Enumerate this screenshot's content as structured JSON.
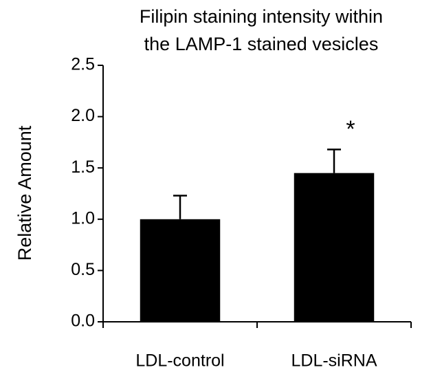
{
  "chart_data": {
    "type": "bar",
    "title": [
      "Filipin staining intensity within",
      "the LAMP-1 stained vesicles"
    ],
    "y_label": "Relative Amount",
    "categories": [
      "LDL-control",
      "LDL-siRNA"
    ],
    "values": [
      1.0,
      1.45
    ],
    "errors": [
      0.23,
      0.23
    ],
    "color": "#000000",
    "annotations": [
      "*"
    ],
    "ylim": [
      0,
      2.5
    ],
    "yticks": [
      {
        "value": 0,
        "label": "0.0"
      },
      0.5,
      {
        "value": 1,
        "label": "1.0"
      },
      1.5,
      {
        "value": 2,
        "label": "2.0"
      },
      2.5
    ],
    "grid": false
  }
}
